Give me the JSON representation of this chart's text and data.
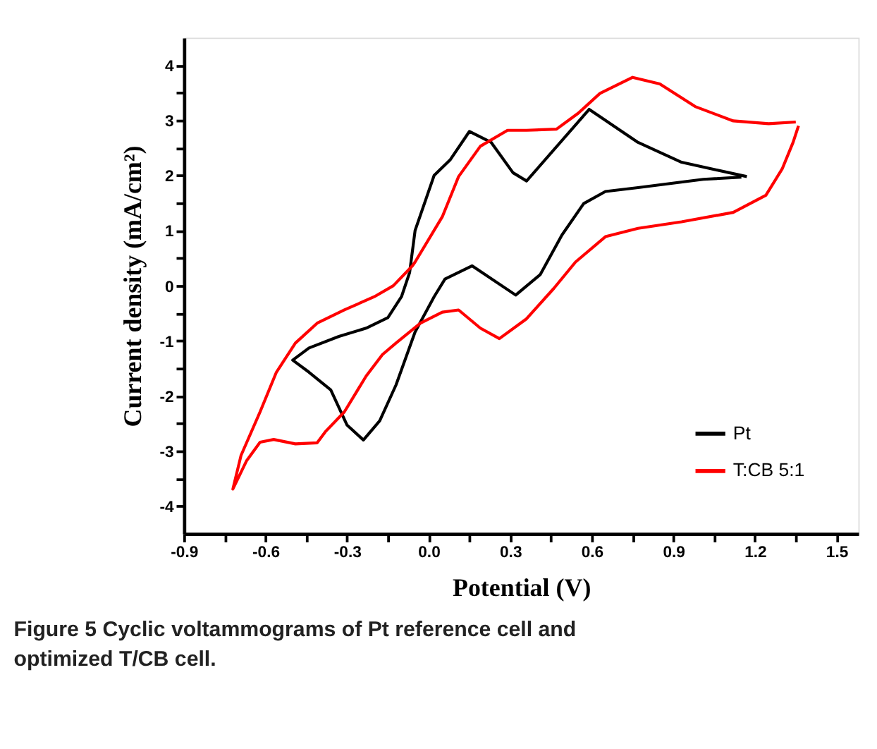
{
  "chart_data": {
    "type": "line",
    "xlabel": "Potential (V)",
    "ylabel": "Current density (mA/cm²)",
    "annotations": [
      "Figure 5 Cyclic voltammograms of Pt reference cell and optimized T/CB cell."
    ],
    "xlim": [
      -0.9,
      1.58
    ],
    "ylim": [
      -4.5,
      4.5
    ],
    "xticks": [
      {
        "value": -0.9,
        "label": "-0.9"
      },
      {
        "value": -0.75,
        "label": null
      },
      {
        "value": -0.6,
        "label": "-0.6"
      },
      {
        "value": -0.45,
        "label": null
      },
      {
        "value": -0.3,
        "label": "-0.3"
      },
      {
        "value": -0.15,
        "label": null
      },
      {
        "value": 0,
        "label": "0.0"
      },
      {
        "value": 0.15,
        "label": null
      },
      {
        "value": 0.3,
        "label": "0.3"
      },
      {
        "value": 0.45,
        "label": null
      },
      {
        "value": 0.6,
        "label": "0.6"
      },
      {
        "value": 0.75,
        "label": null
      },
      {
        "value": 0.9,
        "label": "0.9"
      },
      {
        "value": 1.05,
        "label": null
      },
      {
        "value": 1.2,
        "label": "1.2"
      },
      {
        "value": 1.35,
        "label": null
      },
      {
        "value": 1.5,
        "label": "1.5"
      }
    ],
    "yticks": [
      -4,
      {
        "value": -3.5,
        "label": null
      },
      -3,
      {
        "value": -2.5,
        "label": null
      },
      -2,
      {
        "value": -1.5,
        "label": null
      },
      -1,
      {
        "value": -0.5,
        "label": null
      },
      0,
      {
        "value": 0.5,
        "label": null
      },
      1,
      {
        "value": 1.5,
        "label": null
      },
      2,
      {
        "value": 2.5,
        "label": null
      },
      3,
      {
        "value": 3.5,
        "label": null
      },
      4
    ],
    "grid": false,
    "legend": "bottom right",
    "marker": "none",
    "line_style": "solid",
    "series": [
      {
        "name": "Pt",
        "color": "#000000",
        "x": [
          1.17,
          0.93,
          0.77,
          0.59,
          0.36,
          0.31,
          0.23,
          0.15,
          0.08,
          0.02,
          -0.05,
          -0.07,
          -0.1,
          -0.15,
          -0.23,
          -0.33,
          -0.44,
          -0.5,
          -0.44,
          -0.36,
          -0.3,
          -0.24,
          -0.18,
          -0.12,
          -0.05,
          0.02,
          0.06,
          0.16,
          0.32,
          0.41,
          0.49,
          0.57,
          0.65,
          0.77,
          1.01,
          1.15
        ],
        "values": [
          1.98,
          2.24,
          2.6,
          3.2,
          1.9,
          2.05,
          2.6,
          2.8,
          2.29,
          2.0,
          1.0,
          0.24,
          -0.2,
          -0.58,
          -0.77,
          -0.92,
          -1.13,
          -1.35,
          -1.57,
          -1.89,
          -2.53,
          -2.8,
          -2.45,
          -1.8,
          -0.84,
          -0.2,
          0.12,
          0.36,
          -0.17,
          0.2,
          0.92,
          1.49,
          1.71,
          1.78,
          1.93,
          1.97
        ]
      },
      {
        "name": "T:CB 5:1",
        "color": "#ff0000",
        "x": [
          1.35,
          1.25,
          1.12,
          0.98,
          0.85,
          0.75,
          0.63,
          0.55,
          0.47,
          0.36,
          0.29,
          0.19,
          0.11,
          0.05,
          -0.05,
          -0.06,
          -0.13,
          -0.2,
          -0.31,
          -0.41,
          -0.49,
          -0.56,
          -0.62,
          -0.69,
          -0.72,
          -0.67,
          -0.62,
          -0.57,
          -0.49,
          -0.41,
          -0.38,
          -0.31,
          -0.23,
          -0.17,
          -0.12,
          -0.03,
          0.05,
          0.11,
          0.19,
          0.26,
          0.36,
          0.46,
          0.54,
          0.65,
          0.77,
          0.93,
          1.12,
          1.24,
          1.3,
          1.34,
          1.36
        ],
        "values": [
          2.97,
          2.94,
          2.99,
          3.25,
          3.66,
          3.78,
          3.49,
          3.13,
          2.84,
          2.82,
          2.82,
          2.53,
          1.98,
          1.25,
          0.43,
          0.36,
          0.0,
          -0.2,
          -0.44,
          -0.68,
          -1.04,
          -1.57,
          -2.29,
          -3.08,
          -3.69,
          -3.18,
          -2.84,
          -2.79,
          -2.87,
          -2.85,
          -2.65,
          -2.29,
          -1.64,
          -1.25,
          -1.04,
          -0.68,
          -0.48,
          -0.44,
          -0.77,
          -0.96,
          -0.6,
          -0.05,
          0.43,
          0.89,
          1.04,
          1.16,
          1.33,
          1.64,
          2.12,
          2.6,
          2.9
        ]
      }
    ]
  }
}
